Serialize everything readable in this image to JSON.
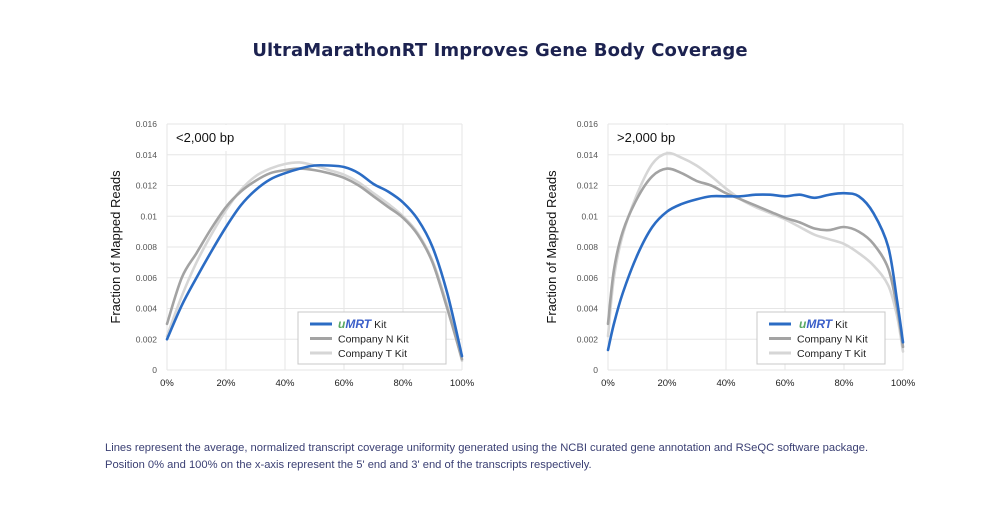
{
  "title": "UltraMarathonRT Improves Gene Body Coverage",
  "caption": {
    "line1": "Lines represent the average, normalized transcript coverage uniformity generated using the NCBI curated gene annotation and RSeQC software package.",
    "line2": "Position 0% and 100% on the x-axis represent the 5' end and 3' end of the transcripts respectively."
  },
  "colors": {
    "umrt": "#2b6cc4",
    "company_n": "#a3a3a3",
    "company_t": "#d6d6d6",
    "brand_u": "#5aa864",
    "brand_mrt": "#3b5fc9",
    "grid": "#e6e6e6",
    "title": "#1c2250"
  },
  "chart_data": [
    {
      "type": "line",
      "panel_label": "<2,000 bp",
      "title": "",
      "xlabel": "",
      "ylabel": "Fraction of Mapped Reads",
      "xlim": [
        0,
        100
      ],
      "ylim": [
        0,
        0.016
      ],
      "x_ticks": [
        "0%",
        "20%",
        "40%",
        "60%",
        "80%",
        "100%"
      ],
      "y_ticks": [
        "0",
        "0.002",
        "0.004",
        "0.006",
        "0.008",
        "0.01",
        "0.012",
        "0.014",
        "0.016"
      ],
      "grid": true,
      "legend_position": "bottom-right",
      "x": [
        0,
        5,
        10,
        15,
        20,
        25,
        30,
        35,
        40,
        45,
        50,
        55,
        60,
        65,
        70,
        75,
        80,
        85,
        90,
        95,
        100
      ],
      "series": [
        {
          "name": "uMRT Kit",
          "brand_prefix": "uMRT",
          "suffix": "Kit",
          "color_key": "umrt",
          "values": [
            0.002,
            0.0042,
            0.006,
            0.0077,
            0.0093,
            0.0107,
            0.0117,
            0.0124,
            0.0128,
            0.0131,
            0.0133,
            0.0133,
            0.0132,
            0.0128,
            0.0121,
            0.0116,
            0.0109,
            0.0098,
            0.008,
            0.005,
            0.0009
          ]
        },
        {
          "name": "Company N Kit",
          "color_key": "company_n",
          "values": [
            0.003,
            0.006,
            0.0076,
            0.0092,
            0.0106,
            0.0116,
            0.0123,
            0.0128,
            0.013,
            0.0131,
            0.013,
            0.0128,
            0.0125,
            0.012,
            0.0113,
            0.0106,
            0.0099,
            0.0088,
            0.007,
            0.004,
            0.0007
          ]
        },
        {
          "name": "Company T Kit",
          "color_key": "company_t",
          "values": [
            0.0022,
            0.0048,
            0.007,
            0.0088,
            0.0104,
            0.0117,
            0.0126,
            0.0131,
            0.0134,
            0.0135,
            0.0133,
            0.013,
            0.0127,
            0.0122,
            0.0115,
            0.0108,
            0.01,
            0.0089,
            0.0071,
            0.0042,
            0.0006
          ]
        }
      ]
    },
    {
      "type": "line",
      "panel_label": ">2,000 bp",
      "title": "",
      "xlabel": "",
      "ylabel": "Fraction of Mapped Reads",
      "xlim": [
        0,
        100
      ],
      "ylim": [
        0,
        0.016
      ],
      "x_ticks": [
        "0%",
        "20%",
        "40%",
        "60%",
        "80%",
        "100%"
      ],
      "y_ticks": [
        "0",
        "0.002",
        "0.004",
        "0.006",
        "0.008",
        "0.01",
        "0.012",
        "0.014",
        "0.016"
      ],
      "grid": true,
      "legend_position": "bottom-right",
      "x": [
        0,
        2,
        5,
        10,
        15,
        20,
        25,
        30,
        35,
        40,
        45,
        50,
        55,
        60,
        65,
        70,
        75,
        80,
        85,
        90,
        95,
        98,
        100
      ],
      "series": [
        {
          "name": "uMRT Kit",
          "brand_prefix": "uMRT",
          "suffix": "Kit",
          "color_key": "umrt",
          "values": [
            0.0013,
            0.003,
            0.005,
            0.0075,
            0.0093,
            0.0103,
            0.0108,
            0.0111,
            0.0113,
            0.0113,
            0.0113,
            0.0114,
            0.0114,
            0.0113,
            0.0114,
            0.0112,
            0.0114,
            0.0115,
            0.0113,
            0.0102,
            0.008,
            0.0045,
            0.0018
          ]
        },
        {
          "name": "Company N Kit",
          "color_key": "company_n",
          "values": [
            0.003,
            0.0065,
            0.009,
            0.0112,
            0.0126,
            0.0131,
            0.0128,
            0.0123,
            0.012,
            0.0115,
            0.0111,
            0.0107,
            0.0103,
            0.0099,
            0.0096,
            0.0092,
            0.0091,
            0.0093,
            0.009,
            0.0082,
            0.0066,
            0.004,
            0.0015
          ]
        },
        {
          "name": "Company T Kit",
          "color_key": "company_t",
          "values": [
            0.0022,
            0.006,
            0.0088,
            0.0115,
            0.0134,
            0.0141,
            0.0138,
            0.0133,
            0.0126,
            0.0118,
            0.0111,
            0.0106,
            0.0102,
            0.0098,
            0.0093,
            0.0088,
            0.0085,
            0.0082,
            0.0076,
            0.0068,
            0.0055,
            0.0035,
            0.0012
          ]
        }
      ]
    }
  ]
}
